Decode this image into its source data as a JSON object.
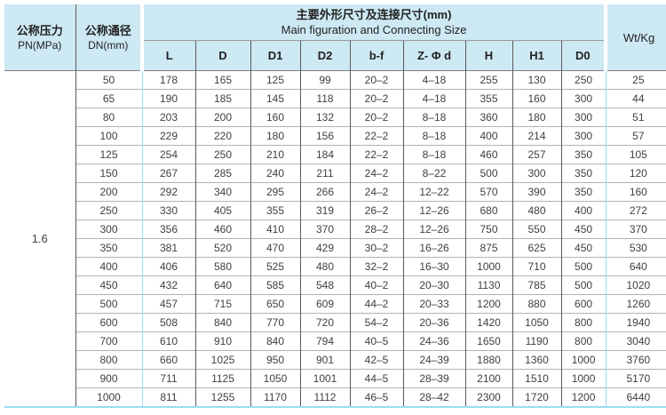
{
  "colors": {
    "header_bg": "#cde9f3",
    "accent_line": "#9bdcf2",
    "grid_dark": "#5a5a5a",
    "grid_light": "#b3b3b3"
  },
  "table": {
    "header": {
      "pn_label_cn": "公称压力",
      "pn_label_en": "PN(MPa)",
      "dn_label_cn": "公称通径",
      "dn_label_en": "DN(mm)",
      "main_title_cn": "主要外形尺寸及连接尺寸(mm)",
      "main_title_en": "Main figuration and Connecting Size",
      "size_columns": [
        "L",
        "D",
        "D1",
        "D2",
        "b-f",
        "Z- Φ d",
        "H",
        "H1",
        "D0"
      ],
      "wt_label": "Wt/Kg"
    },
    "pn_value": "1.6",
    "rows": [
      {
        "dn": "50",
        "values": [
          "178",
          "165",
          "125",
          "99",
          "20–2",
          "4–18",
          "255",
          "130",
          "250"
        ],
        "wt": "25"
      },
      {
        "dn": "65",
        "values": [
          "190",
          "185",
          "145",
          "118",
          "20–2",
          "4–18",
          "355",
          "160",
          "300"
        ],
        "wt": "44"
      },
      {
        "dn": "80",
        "values": [
          "203",
          "200",
          "160",
          "132",
          "20–2",
          "8–18",
          "360",
          "180",
          "300"
        ],
        "wt": "51"
      },
      {
        "dn": "100",
        "values": [
          "229",
          "220",
          "180",
          "156",
          "22–2",
          "8–18",
          "400",
          "214",
          "300"
        ],
        "wt": "57"
      },
      {
        "dn": "125",
        "values": [
          "254",
          "250",
          "210",
          "184",
          "22–2",
          "8–18",
          "460",
          "257",
          "350"
        ],
        "wt": "105"
      },
      {
        "dn": "150",
        "values": [
          "267",
          "285",
          "240",
          "211",
          "24–2",
          "8–22",
          "500",
          "300",
          "350"
        ],
        "wt": "120"
      },
      {
        "dn": "200",
        "values": [
          "292",
          "340",
          "295",
          "266",
          "24–2",
          "12–22",
          "570",
          "390",
          "350"
        ],
        "wt": "160"
      },
      {
        "dn": "250",
        "values": [
          "330",
          "405",
          "355",
          "319",
          "26–2",
          "12–26",
          "680",
          "480",
          "400"
        ],
        "wt": "272"
      },
      {
        "dn": "300",
        "values": [
          "356",
          "460",
          "410",
          "370",
          "28–2",
          "12–26",
          "750",
          "550",
          "450"
        ],
        "wt": "370"
      },
      {
        "dn": "350",
        "values": [
          "381",
          "520",
          "470",
          "429",
          "30–2",
          "16–26",
          "875",
          "625",
          "450"
        ],
        "wt": "530"
      },
      {
        "dn": "400",
        "values": [
          "406",
          "580",
          "525",
          "480",
          "32–2",
          "16–30",
          "1000",
          "710",
          "500"
        ],
        "wt": "640"
      },
      {
        "dn": "450",
        "values": [
          "432",
          "640",
          "585",
          "548",
          "40–2",
          "20–30",
          "1130",
          "785",
          "500"
        ],
        "wt": "1020"
      },
      {
        "dn": "500",
        "values": [
          "457",
          "715",
          "650",
          "609",
          "44–2",
          "20–33",
          "1200",
          "880",
          "600"
        ],
        "wt": "1260"
      },
      {
        "dn": "600",
        "values": [
          "508",
          "840",
          "770",
          "720",
          "54–2",
          "20–36",
          "1420",
          "1050",
          "800"
        ],
        "wt": "1940"
      },
      {
        "dn": "700",
        "values": [
          "610",
          "910",
          "840",
          "794",
          "40–5",
          "24–36",
          "1650",
          "1190",
          "800"
        ],
        "wt": "3040"
      },
      {
        "dn": "800",
        "values": [
          "660",
          "1025",
          "950",
          "901",
          "42–5",
          "24–39",
          "1880",
          "1360",
          "1000"
        ],
        "wt": "3760"
      },
      {
        "dn": "900",
        "values": [
          "711",
          "1125",
          "1050",
          "1001",
          "44–5",
          "28–39",
          "2100",
          "1510",
          "1000"
        ],
        "wt": "5170"
      },
      {
        "dn": "1000",
        "values": [
          "811",
          "1255",
          "1170",
          "1112",
          "46–5",
          "28–42",
          "2300",
          "1720",
          "1200"
        ],
        "wt": "6440"
      }
    ]
  }
}
